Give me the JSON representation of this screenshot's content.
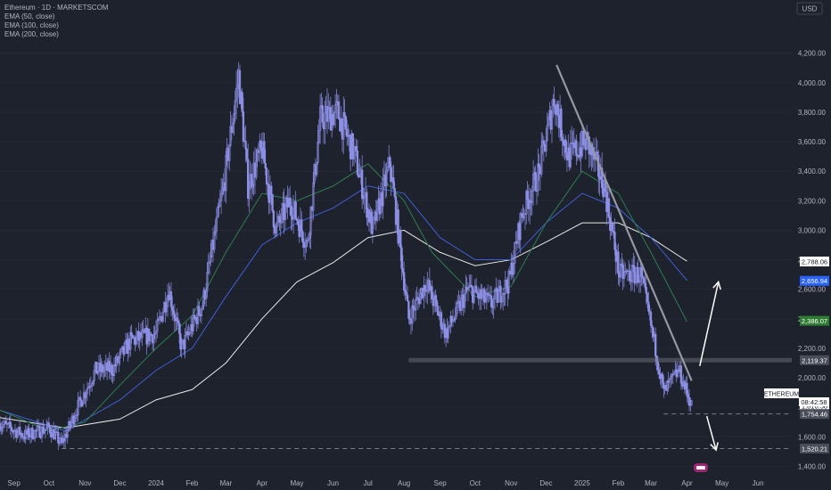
{
  "legend": {
    "title": "Ethereum · 1D · MARKETSCOM",
    "ema50": "EMA (50, close)",
    "ema100": "EMA (100, close)",
    "ema200": "EMA (200, close)"
  },
  "currency": "USD",
  "symbol_label": "ETHEREUM",
  "countdown": "08:42:58",
  "colors": {
    "background": "#1e222d",
    "candle": "#8e90e6",
    "ema50": "#2e7d4f",
    "ema100": "#3f5fd6",
    "ema200": "#e8e8e8",
    "trendline": "#9598a1",
    "support": "#787b86"
  },
  "chart_data": {
    "type": "candlestick",
    "y_axis": {
      "ticks": [
        1400,
        1600,
        1800,
        2000,
        2200,
        2400,
        2600,
        2800,
        3000,
        3200,
        3400,
        3600,
        3800,
        4000,
        4200
      ],
      "tick_labels": [
        "1,400.00",
        "1,600.00",
        "1,800.00",
        "2,000.00",
        "2,200.00",
        "2,400.00",
        "2,600.00",
        "2,800.00",
        "3,000.00",
        "3,200.00",
        "3,400.00",
        "3,600.00",
        "3,800.00",
        "4,000.00",
        "4,200.00"
      ],
      "range": [
        1360,
        4440
      ]
    },
    "x_axis": {
      "labels": [
        "Sep",
        "Oct",
        "Nov",
        "Dec",
        "2024",
        "Feb",
        "Mar",
        "Apr",
        "May",
        "Jun",
        "Jul",
        "Aug",
        "Sep",
        "Oct",
        "Nov",
        "Dec",
        "2025",
        "Feb",
        "Mar",
        "Apr",
        "May",
        "Jun"
      ],
      "range": [
        "2023-08-20",
        "2025-06-30"
      ]
    },
    "price_path": [
      [
        "2023-08-20",
        1690
      ],
      [
        "2023-09-10",
        1610
      ],
      [
        "2023-10-01",
        1660
      ],
      [
        "2023-10-12",
        1550
      ],
      [
        "2023-10-25",
        1790
      ],
      [
        "2023-11-10",
        2050
      ],
      [
        "2023-11-25",
        2060
      ],
      [
        "2023-12-10",
        2250
      ],
      [
        "2024-01-01",
        2300
      ],
      [
        "2024-01-12",
        2600
      ],
      [
        "2024-01-23",
        2200
      ],
      [
        "2024-02-10",
        2500
      ],
      [
        "2024-02-28",
        3300
      ],
      [
        "2024-03-12",
        4050
      ],
      [
        "2024-03-20",
        3300
      ],
      [
        "2024-04-01",
        3550
      ],
      [
        "2024-04-13",
        3000
      ],
      [
        "2024-04-25",
        3200
      ],
      [
        "2024-05-10",
        2900
      ],
      [
        "2024-05-21",
        3750
      ],
      [
        "2024-06-05",
        3800
      ],
      [
        "2024-06-20",
        3500
      ],
      [
        "2024-07-05",
        3000
      ],
      [
        "2024-07-20",
        3450
      ],
      [
        "2024-08-05",
        2400
      ],
      [
        "2024-08-20",
        2650
      ],
      [
        "2024-09-06",
        2300
      ],
      [
        "2024-09-25",
        2600
      ],
      [
        "2024-10-15",
        2500
      ],
      [
        "2024-10-30",
        2650
      ],
      [
        "2024-11-10",
        3100
      ],
      [
        "2024-11-25",
        3400
      ],
      [
        "2024-12-08",
        3900
      ],
      [
        "2024-12-20",
        3500
      ],
      [
        "2025-01-05",
        3600
      ],
      [
        "2025-01-20",
        3300
      ],
      [
        "2025-02-02",
        2700
      ],
      [
        "2025-02-20",
        2700
      ],
      [
        "2025-03-05",
        2200
      ],
      [
        "2025-03-12",
        1900
      ],
      [
        "2025-03-25",
        2050
      ],
      [
        "2025-04-05",
        1810
      ]
    ],
    "ema50": [
      [
        "2023-08-20",
        1780
      ],
      [
        "2023-10-01",
        1640
      ],
      [
        "2023-11-01",
        1700
      ],
      [
        "2023-12-01",
        1950
      ],
      [
        "2024-01-01",
        2200
      ],
      [
        "2024-02-01",
        2420
      ],
      [
        "2024-03-01",
        2850
      ],
      [
        "2024-04-01",
        3250
      ],
      [
        "2024-05-01",
        3200
      ],
      [
        "2024-06-01",
        3300
      ],
      [
        "2024-07-01",
        3450
      ],
      [
        "2024-08-01",
        3200
      ],
      [
        "2024-08-25",
        2850
      ],
      [
        "2024-10-01",
        2550
      ],
      [
        "2024-11-01",
        2620
      ],
      [
        "2024-12-01",
        3050
      ],
      [
        "2025-01-01",
        3400
      ],
      [
        "2025-02-01",
        3250
      ],
      [
        "2025-03-01",
        2850
      ],
      [
        "2025-04-01",
        2380
      ]
    ],
    "ema100": [
      [
        "2023-08-20",
        1780
      ],
      [
        "2023-10-15",
        1640
      ],
      [
        "2023-12-01",
        1850
      ],
      [
        "2024-01-01",
        2050
      ],
      [
        "2024-02-01",
        2200
      ],
      [
        "2024-03-01",
        2550
      ],
      [
        "2024-04-01",
        2900
      ],
      [
        "2024-05-01",
        3050
      ],
      [
        "2024-06-01",
        3150
      ],
      [
        "2024-07-01",
        3300
      ],
      [
        "2024-08-01",
        3250
      ],
      [
        "2024-09-01",
        2950
      ],
      [
        "2024-10-01",
        2800
      ],
      [
        "2024-11-01",
        2800
      ],
      [
        "2024-12-01",
        3050
      ],
      [
        "2025-01-01",
        3250
      ],
      [
        "2025-02-01",
        3150
      ],
      [
        "2025-03-01",
        2950
      ],
      [
        "2025-04-01",
        2660
      ]
    ],
    "ema200": [
      [
        "2023-08-20",
        1730
      ],
      [
        "2023-10-15",
        1660
      ],
      [
        "2023-12-01",
        1720
      ],
      [
        "2024-01-01",
        1850
      ],
      [
        "2024-02-01",
        1920
      ],
      [
        "2024-03-01",
        2100
      ],
      [
        "2024-04-01",
        2400
      ],
      [
        "2024-05-01",
        2650
      ],
      [
        "2024-06-01",
        2780
      ],
      [
        "2024-07-01",
        2950
      ],
      [
        "2024-08-01",
        3000
      ],
      [
        "2024-09-01",
        2850
      ],
      [
        "2024-10-01",
        2760
      ],
      [
        "2024-11-01",
        2800
      ],
      [
        "2024-12-01",
        2920
      ],
      [
        "2025-01-01",
        3050
      ],
      [
        "2025-02-01",
        3050
      ],
      [
        "2025-03-01",
        2950
      ],
      [
        "2025-04-01",
        2790
      ]
    ],
    "price_labels": [
      {
        "value": 2788.06,
        "text": "2,788.06",
        "bg": "#ffffff",
        "fg": "#131722"
      },
      {
        "value": 2656.94,
        "text": "2,656.94",
        "bg": "#2962ff",
        "fg": "#ffffff"
      },
      {
        "value": 2386.07,
        "text": "2,386.07",
        "bg": "#2e7d32",
        "fg": "#ffffff"
      },
      {
        "value": 2119.37,
        "text": "2,119.37",
        "bg": "#4a4e59",
        "fg": "#ffffff"
      },
      {
        "value": 1810.58,
        "text": "1,810.58",
        "bg": "#ffffff",
        "fg": "#131722"
      },
      {
        "value": 1754.46,
        "text": "1,754.46",
        "bg": "#4a4e59",
        "fg": "#ffffff"
      },
      {
        "value": 1520.21,
        "text": "1,520.21",
        "bg": "#4a4e59",
        "fg": "#ffffff"
      }
    ],
    "annotations": {
      "resistance_zone": {
        "value": 2119.37,
        "start": "2024-08-05"
      },
      "support_1": {
        "value": 1754.46,
        "start": "2025-03-12"
      },
      "support_2": {
        "value": 1520.21,
        "start": "2023-10-12"
      },
      "trendline": [
        [
          "2024-12-10",
          4120
        ],
        [
          "2025-04-05",
          1980
        ]
      ],
      "arrow_up": [
        [
          "2025-04-12",
          2080
        ],
        [
          "2025-04-28",
          2650
        ]
      ],
      "arrow_down": [
        [
          "2025-04-18",
          1740
        ],
        [
          "2025-04-26",
          1510
        ]
      ]
    }
  }
}
